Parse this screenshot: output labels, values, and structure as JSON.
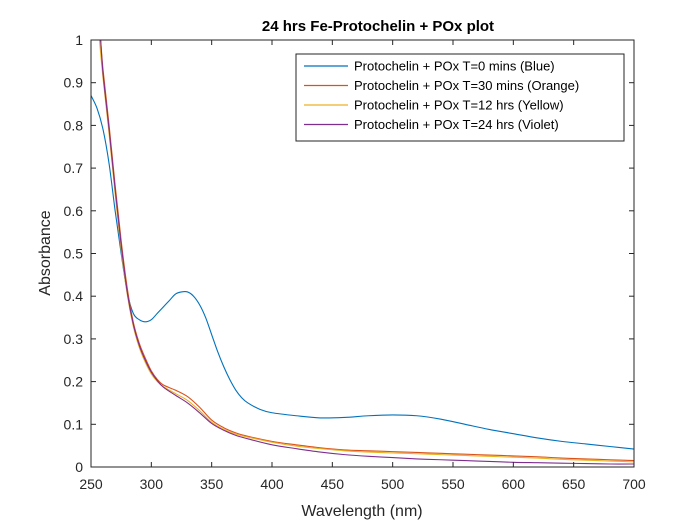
{
  "chart_data": {
    "type": "line",
    "title": "24 hrs Fe-Protochelin + POx plot",
    "xlabel": "Wavelength (nm)",
    "ylabel": "Absorbance",
    "xlim": [
      250,
      700
    ],
    "ylim": [
      0,
      1
    ],
    "xticks": [
      250,
      300,
      350,
      400,
      450,
      500,
      550,
      600,
      650,
      700
    ],
    "yticks": [
      0,
      0.1,
      0.2,
      0.3,
      0.4,
      0.5,
      0.6,
      0.7,
      0.8,
      0.9,
      1
    ],
    "grid": false,
    "legend_position": "top-right",
    "series": [
      {
        "name": "Protochelin + POx T=0 mins (Blue)",
        "color": "#0072BD",
        "x": [
          250,
          255,
          260,
          265,
          270,
          275,
          280,
          285,
          290,
          295,
          300,
          305,
          310,
          315,
          320,
          325,
          330,
          335,
          340,
          345,
          350,
          355,
          360,
          365,
          370,
          375,
          380,
          390,
          400,
          420,
          440,
          460,
          480,
          500,
          520,
          540,
          560,
          580,
          600,
          620,
          640,
          660,
          680,
          700
        ],
        "y": [
          0.87,
          0.84,
          0.79,
          0.71,
          0.6,
          0.5,
          0.41,
          0.36,
          0.345,
          0.34,
          0.345,
          0.36,
          0.375,
          0.39,
          0.405,
          0.41,
          0.41,
          0.4,
          0.38,
          0.35,
          0.31,
          0.27,
          0.235,
          0.205,
          0.18,
          0.162,
          0.15,
          0.135,
          0.127,
          0.12,
          0.115,
          0.116,
          0.12,
          0.122,
          0.12,
          0.112,
          0.1,
          0.088,
          0.078,
          0.068,
          0.06,
          0.054,
          0.048,
          0.042
        ]
      },
      {
        "name": "Protochelin + POx T=30 mins (Orange)",
        "color": "#D95319",
        "x": [
          258,
          260,
          265,
          270,
          275,
          280,
          285,
          290,
          295,
          300,
          305,
          310,
          320,
          330,
          340,
          350,
          360,
          370,
          380,
          400,
          420,
          440,
          460,
          480,
          500,
          520,
          540,
          560,
          580,
          600,
          620,
          640,
          660,
          680,
          700
        ],
        "y": [
          1.0,
          0.93,
          0.8,
          0.66,
          0.53,
          0.42,
          0.34,
          0.29,
          0.255,
          0.225,
          0.205,
          0.192,
          0.18,
          0.165,
          0.14,
          0.11,
          0.092,
          0.08,
          0.072,
          0.06,
          0.052,
          0.045,
          0.04,
          0.038,
          0.036,
          0.034,
          0.032,
          0.03,
          0.028,
          0.026,
          0.024,
          0.021,
          0.019,
          0.017,
          0.015
        ]
      },
      {
        "name": "Protochelin + POx T=12 hrs (Yellow)",
        "color": "#EDB120",
        "x": [
          257,
          260,
          265,
          270,
          275,
          280,
          285,
          290,
          295,
          300,
          305,
          310,
          320,
          330,
          340,
          350,
          360,
          370,
          380,
          400,
          420,
          440,
          460,
          480,
          500,
          520,
          540,
          560,
          580,
          600,
          620,
          640,
          660,
          680,
          700
        ],
        "y": [
          1.0,
          0.91,
          0.78,
          0.64,
          0.51,
          0.405,
          0.33,
          0.28,
          0.245,
          0.218,
          0.2,
          0.188,
          0.172,
          0.156,
          0.132,
          0.105,
          0.088,
          0.077,
          0.07,
          0.058,
          0.049,
          0.043,
          0.038,
          0.035,
          0.033,
          0.031,
          0.029,
          0.027,
          0.025,
          0.023,
          0.021,
          0.018,
          0.016,
          0.014,
          0.012
        ]
      },
      {
        "name": "Protochelin + POx T=24 hrs  (Violet)",
        "color": "#7E2F8E",
        "x": [
          258,
          260,
          265,
          270,
          275,
          280,
          285,
          290,
          295,
          300,
          305,
          310,
          320,
          330,
          340,
          350,
          360,
          370,
          380,
          400,
          420,
          440,
          460,
          480,
          500,
          520,
          540,
          560,
          580,
          600,
          620,
          640,
          660,
          680,
          700
        ],
        "y": [
          1.0,
          0.92,
          0.79,
          0.65,
          0.52,
          0.41,
          0.335,
          0.285,
          0.25,
          0.222,
          0.202,
          0.187,
          0.168,
          0.15,
          0.127,
          0.102,
          0.086,
          0.074,
          0.066,
          0.052,
          0.043,
          0.035,
          0.029,
          0.025,
          0.022,
          0.019,
          0.017,
          0.015,
          0.013,
          0.011,
          0.01,
          0.009,
          0.008,
          0.007,
          0.007
        ]
      }
    ]
  }
}
